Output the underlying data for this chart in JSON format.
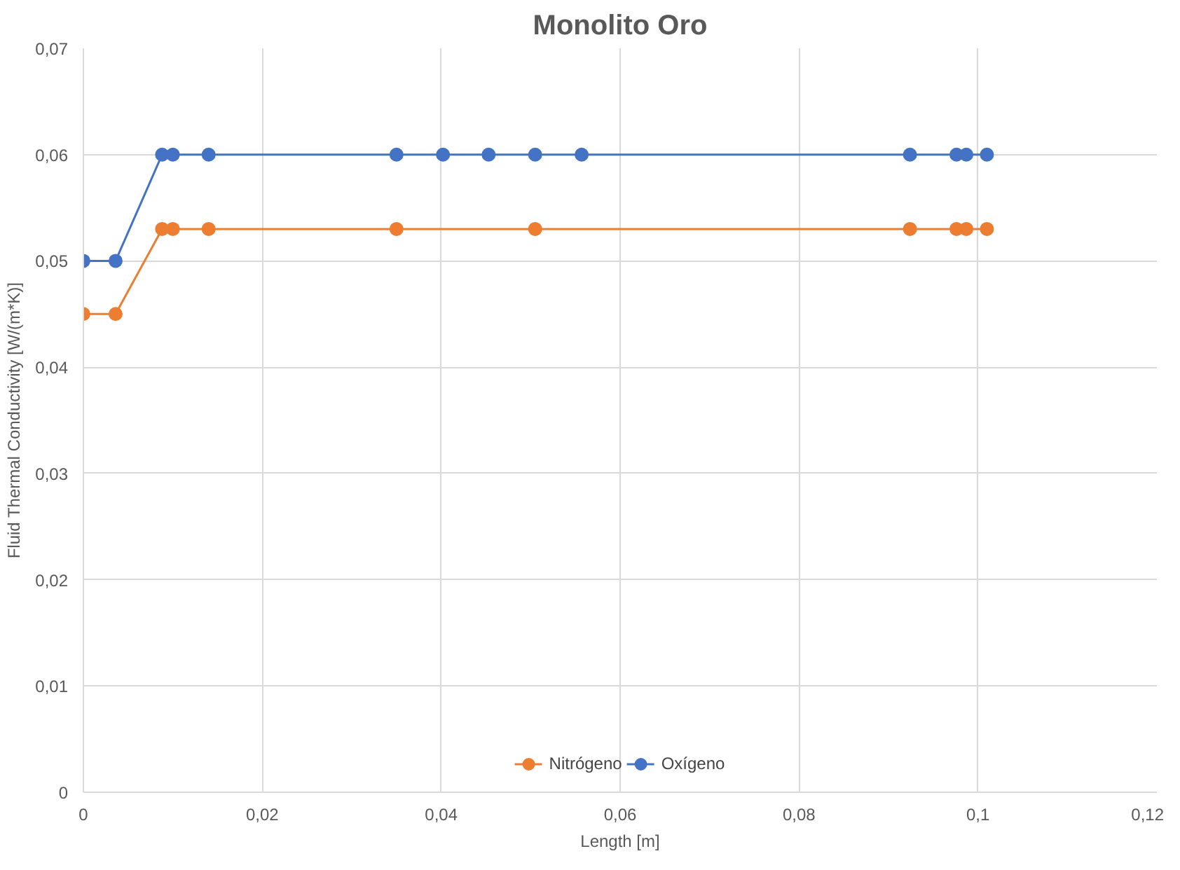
{
  "chart_data": {
    "type": "line",
    "title": "Monolito Oro",
    "xlabel": "Length [m]",
    "ylabel": "Fluid Thermal Conductivity [W/(m*K)]",
    "xlim": [
      0,
      0.12
    ],
    "ylim": [
      0,
      0.07
    ],
    "xticks": [
      0,
      {
        "value": 0.02,
        "label": "0,02"
      },
      {
        "value": 0.04,
        "label": "0,04"
      },
      {
        "value": 0.06,
        "label": "0,06"
      },
      {
        "value": 0.08,
        "label": "0,08"
      },
      {
        "value": 0.1,
        "label": "0,1"
      },
      {
        "value": 0.12,
        "label": "0,12"
      }
    ],
    "yticks": [
      0,
      {
        "value": 0.01,
        "label": "0,01"
      },
      {
        "value": 0.02,
        "label": "0,02"
      },
      {
        "value": 0.03,
        "label": "0,03"
      },
      {
        "value": 0.04,
        "label": "0,04"
      },
      {
        "value": 0.05,
        "label": "0,05"
      },
      {
        "value": 0.06,
        "label": "0,06"
      },
      {
        "value": 0.07,
        "label": "0,07"
      }
    ],
    "grid": true,
    "legend": "bottom",
    "marker": "circle",
    "line_style": "solid",
    "series": [
      {
        "name": "Nitrógeno",
        "color": "#ed7d31",
        "x": [
          0,
          0.0036,
          0.0088,
          0.01,
          0.014,
          0.035,
          0.0505,
          0.0924,
          0.0976,
          0.0987,
          0.101
        ],
        "values": [
          0.045,
          0.045,
          0.053,
          0.053,
          0.053,
          0.053,
          0.053,
          0.053,
          0.053,
          0.053,
          0.053
        ]
      },
      {
        "name": "Oxígeno",
        "color": "#4472c4",
        "x": [
          0,
          0.0036,
          0.0088,
          0.01,
          0.014,
          0.035,
          0.0402,
          0.0453,
          0.0505,
          0.0557,
          0.0924,
          0.0976,
          0.0987,
          0.101
        ],
        "values": [
          0.05,
          0.05,
          0.06,
          0.06,
          0.06,
          0.06,
          0.06,
          0.06,
          0.06,
          0.06,
          0.06,
          0.06,
          0.06,
          0.06
        ]
      }
    ]
  }
}
